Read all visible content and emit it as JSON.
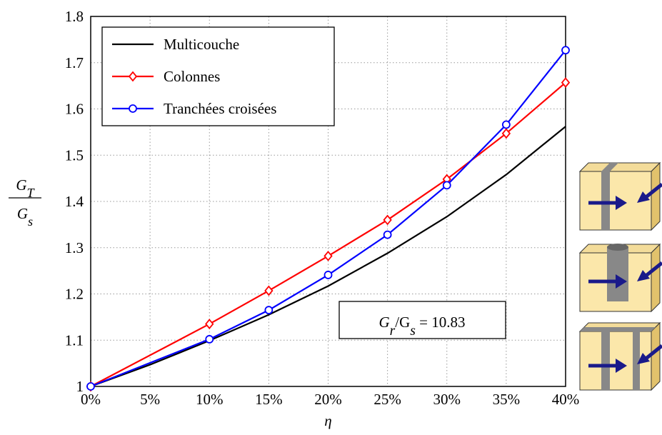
{
  "chart_data": {
    "type": "line",
    "xlabel": "η",
    "ylabel": {
      "numerator": [
        {
          "text": "G"
        },
        {
          "text": "T",
          "sub": true
        }
      ],
      "denominator": [
        {
          "text": "G"
        },
        {
          "text": "s",
          "sub": true
        }
      ]
    },
    "annotation": [
      {
        "text": "G"
      },
      {
        "text": "r",
        "sub": true
      },
      {
        "text": "/G"
      },
      {
        "text": "s",
        "sub": true
      },
      {
        "text": " = 10.83"
      }
    ],
    "xlim": [
      0,
      40
    ],
    "ylim": [
      1,
      1.8
    ],
    "xticks": [
      {
        "value": 0,
        "label": "0%"
      },
      {
        "value": 5,
        "label": "5%"
      },
      {
        "value": 10,
        "label": "10%"
      },
      {
        "value": 15,
        "label": "15%"
      },
      {
        "value": 20,
        "label": "20%"
      },
      {
        "value": 25,
        "label": "25%"
      },
      {
        "value": 30,
        "label": "30%"
      },
      {
        "value": 35,
        "label": "35%"
      },
      {
        "value": 40,
        "label": "40%"
      }
    ],
    "yticks": [
      1,
      1.1,
      1.2,
      1.3,
      1.4,
      1.5,
      1.6,
      1.7,
      1.8
    ],
    "grid": true,
    "legend": "upper left",
    "series": [
      {
        "name": "Multicouche",
        "color": "#000000",
        "marker": "none",
        "x": [
          0,
          5,
          10,
          15,
          20,
          25,
          30,
          35,
          40
        ],
        "values": [
          1,
          1.047,
          1.099,
          1.155,
          1.217,
          1.288,
          1.367,
          1.458,
          1.562
        ]
      },
      {
        "name": "Colonnes",
        "color": "#ff0000",
        "marker": "diamond",
        "x": [
          0,
          10,
          15,
          20,
          25,
          30,
          35,
          40
        ],
        "values": [
          1,
          1.135,
          1.207,
          1.282,
          1.36,
          1.448,
          1.547,
          1.657
        ]
      },
      {
        "name": "Tranchées croisées",
        "color": "#0000ff",
        "marker": "circle",
        "x": [
          0,
          10,
          15,
          20,
          25,
          30,
          35,
          40
        ],
        "values": [
          1,
          1.102,
          1.165,
          1.241,
          1.328,
          1.435,
          1.566,
          1.727
        ]
      }
    ]
  }
}
